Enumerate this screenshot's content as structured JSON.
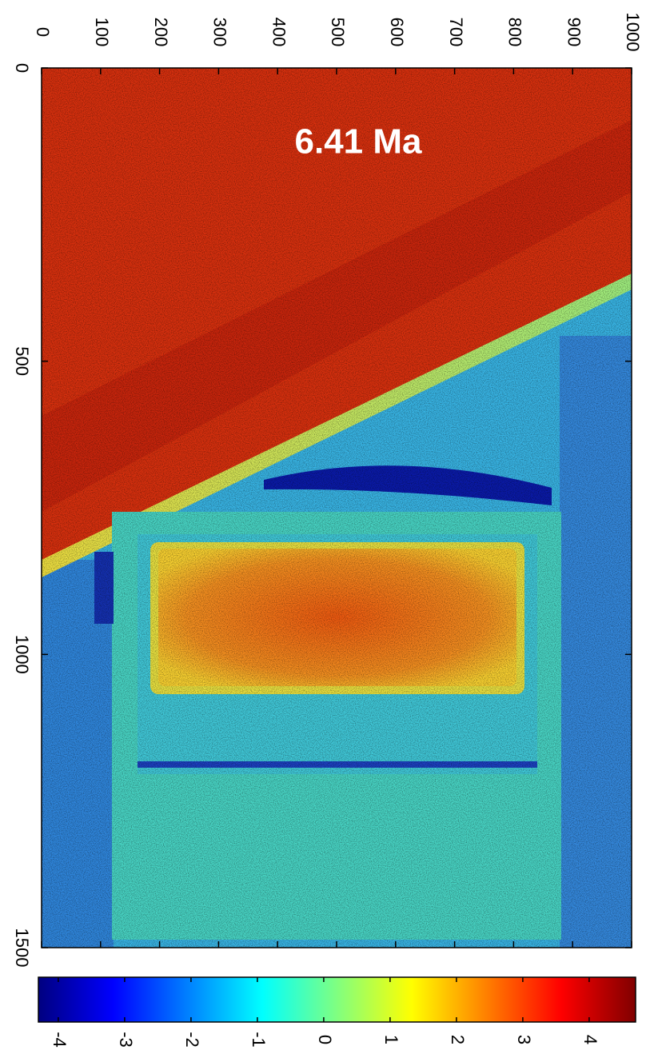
{
  "chart_data": {
    "type": "heatmap",
    "annotation": "6.41 Ma",
    "xlim": [
      0,
      1000
    ],
    "xticks": [
      0,
      100,
      200,
      300,
      400,
      500,
      600,
      700,
      800,
      900,
      1000
    ],
    "ylim": [
      0,
      1500
    ],
    "yticks": [
      0,
      500,
      1000,
      1500
    ],
    "colorbar": {
      "lim": [
        -4.3,
        4.7
      ],
      "ticks": [
        -4,
        -3,
        -2,
        -1,
        0,
        1,
        2,
        3,
        4
      ],
      "colormap": "jet"
    }
  }
}
